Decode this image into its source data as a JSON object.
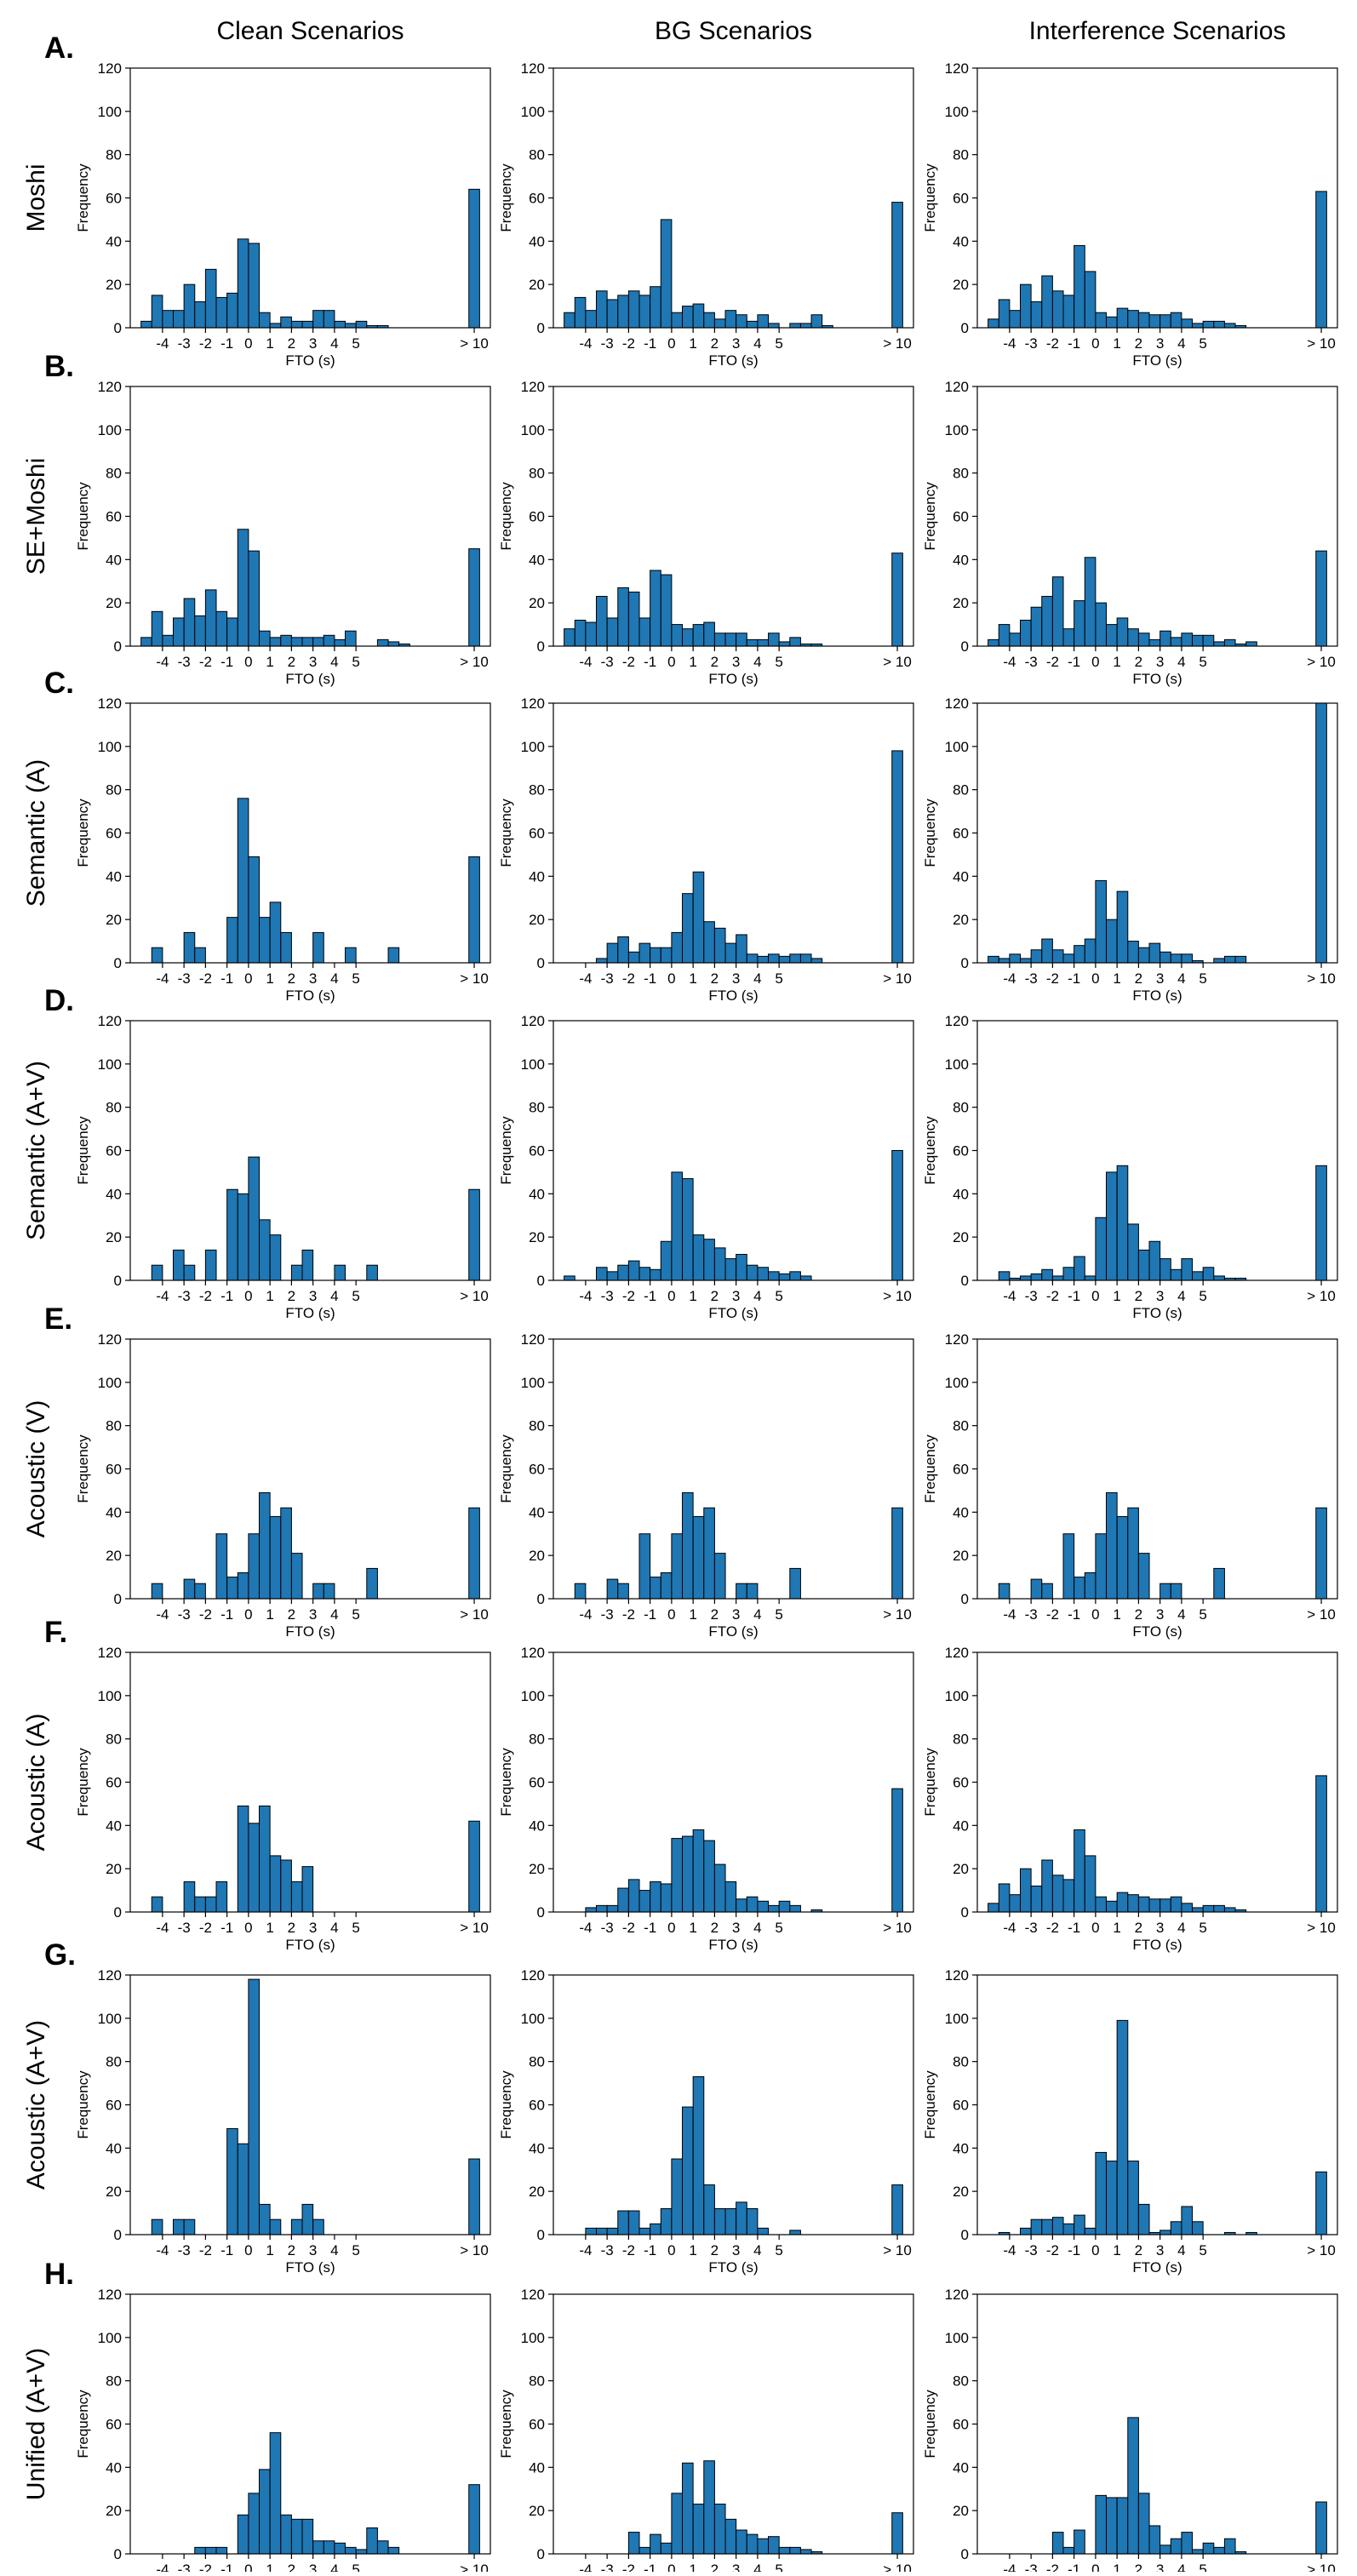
{
  "colors": {
    "bar_fill": "#1f77b4",
    "bar_edge": "#000000",
    "axis": "#000000",
    "background": "#ffffff"
  },
  "column_titles": [
    "Clean Scenarios",
    "BG Scenarios",
    "Interference Scenarios"
  ],
  "row_letters": [
    "A.",
    "B.",
    "C.",
    "D.",
    "E.",
    "F.",
    "G.",
    "H."
  ],
  "row_labels": [
    "Moshi",
    "SE+Moshi",
    "Semantic (A)",
    "Semantic (A+V)",
    "Acoustic (V)",
    "Acoustic (A)",
    "Acoustic  (A+V)",
    "Unified (A+V)"
  ],
  "chart_data": {
    "type": "bar",
    "layout": "grid-8x3",
    "xlabel": "FTO (s)",
    "ylabel": "Frequency",
    "ylim": [
      0,
      120
    ],
    "yticks": [
      0,
      20,
      40,
      60,
      80,
      100,
      120
    ],
    "xlim": [
      -5.5,
      11.25
    ],
    "xtick_values": [
      -4,
      -3,
      -2,
      -1,
      0,
      1,
      2,
      3,
      4,
      5,
      10.5
    ],
    "xtick_labels": [
      "-4",
      "-3",
      "-2",
      "-1",
      "0",
      "1",
      "2",
      "3",
      "4",
      "5",
      "> 10"
    ],
    "bin_width": 0.5,
    "bin_start": -5,
    "overflow_bin_label": "> 10",
    "panels": [
      [
        {
          "values": [
            3,
            15,
            8,
            8,
            20,
            12,
            27,
            14,
            16,
            41,
            39,
            7,
            2,
            5,
            3,
            3,
            8,
            8,
            3,
            2,
            3,
            1,
            1
          ],
          "overflow": 64
        },
        {
          "values": [
            7,
            14,
            8,
            17,
            13,
            15,
            17,
            15,
            19,
            50,
            7,
            10,
            11,
            7,
            4,
            8,
            6,
            3,
            6,
            2,
            0,
            2,
            2,
            6,
            1
          ],
          "overflow": 58
        },
        {
          "values": [
            4,
            13,
            8,
            20,
            12,
            24,
            17,
            15,
            38,
            26,
            7,
            5,
            9,
            8,
            7,
            6,
            6,
            7,
            4,
            2,
            3,
            3,
            2,
            1
          ],
          "overflow": 63
        }
      ],
      [
        {
          "values": [
            4,
            16,
            5,
            13,
            22,
            14,
            26,
            16,
            13,
            54,
            44,
            7,
            4,
            5,
            4,
            4,
            4,
            5,
            3,
            7,
            0,
            0,
            3,
            2,
            1
          ],
          "overflow": 45
        },
        {
          "values": [
            8,
            12,
            11,
            23,
            13,
            27,
            25,
            13,
            35,
            33,
            10,
            8,
            10,
            11,
            6,
            6,
            6,
            3,
            3,
            6,
            2,
            4,
            1,
            1
          ],
          "overflow": 43
        },
        {
          "values": [
            3,
            10,
            6,
            12,
            18,
            23,
            32,
            8,
            21,
            41,
            20,
            10,
            13,
            8,
            6,
            3,
            7,
            4,
            6,
            5,
            5,
            2,
            3,
            1,
            2
          ],
          "overflow": 44
        }
      ],
      [
        {
          "values": [
            0,
            7,
            0,
            0,
            14,
            7,
            0,
            0,
            21,
            76,
            49,
            21,
            28,
            14,
            0,
            0,
            14,
            0,
            0,
            7,
            0,
            0,
            0,
            7
          ],
          "overflow": 49
        },
        {
          "values": [
            0,
            0,
            0,
            2,
            9,
            12,
            5,
            9,
            7,
            7,
            14,
            32,
            42,
            19,
            16,
            9,
            13,
            4,
            3,
            4,
            3,
            4,
            4,
            2
          ],
          "overflow": 98
        },
        {
          "values": [
            3,
            2,
            4,
            2,
            6,
            11,
            6,
            4,
            8,
            11,
            38,
            20,
            33,
            10,
            7,
            9,
            5,
            4,
            4,
            1,
            0,
            2,
            3,
            3
          ],
          "overflow": 120
        }
      ],
      [
        {
          "values": [
            0,
            7,
            0,
            14,
            7,
            0,
            14,
            0,
            42,
            40,
            57,
            28,
            21,
            0,
            7,
            14,
            0,
            0,
            7,
            0,
            0,
            7
          ],
          "overflow": 42
        },
        {
          "values": [
            2,
            0,
            0,
            6,
            4,
            7,
            9,
            6,
            5,
            18,
            50,
            47,
            21,
            19,
            15,
            10,
            12,
            7,
            6,
            4,
            3,
            4,
            2
          ],
          "overflow": 60
        },
        {
          "values": [
            0,
            4,
            1,
            2,
            3,
            5,
            2,
            6,
            11,
            2,
            29,
            50,
            53,
            26,
            14,
            18,
            10,
            5,
            10,
            4,
            6,
            2,
            1,
            1
          ],
          "overflow": 53
        }
      ],
      [
        {
          "values": [
            0,
            7,
            0,
            0,
            9,
            7,
            0,
            30,
            10,
            12,
            30,
            49,
            38,
            42,
            21,
            0,
            7,
            7,
            0,
            0,
            0,
            14
          ],
          "overflow": 42
        },
        {
          "values": [
            0,
            7,
            0,
            0,
            9,
            7,
            0,
            30,
            10,
            12,
            30,
            49,
            38,
            42,
            21,
            0,
            7,
            7,
            0,
            0,
            0,
            14
          ],
          "overflow": 42
        },
        {
          "values": [
            0,
            7,
            0,
            0,
            9,
            7,
            0,
            30,
            10,
            12,
            30,
            49,
            38,
            42,
            21,
            0,
            7,
            7,
            0,
            0,
            0,
            14
          ],
          "overflow": 42
        }
      ],
      [
        {
          "values": [
            0,
            7,
            0,
            0,
            14,
            7,
            7,
            14,
            0,
            49,
            41,
            49,
            26,
            24,
            14,
            21
          ],
          "overflow": 42
        },
        {
          "values": [
            0,
            0,
            2,
            3,
            3,
            11,
            15,
            10,
            14,
            13,
            34,
            35,
            38,
            33,
            22,
            14,
            6,
            7,
            5,
            3,
            5,
            3,
            0,
            1
          ],
          "overflow": 57
        },
        {
          "values": [
            4,
            13,
            8,
            20,
            12,
            24,
            17,
            15,
            38,
            26,
            7,
            5,
            9,
            8,
            7,
            6,
            6,
            7,
            4,
            2,
            3,
            3,
            2,
            1
          ],
          "overflow": 63
        }
      ],
      [
        {
          "values": [
            0,
            7,
            0,
            7,
            7,
            0,
            0,
            0,
            49,
            42,
            118,
            14,
            7,
            0,
            7,
            14,
            7
          ],
          "overflow": 35
        },
        {
          "values": [
            0,
            0,
            3,
            3,
            3,
            11,
            11,
            3,
            5,
            12,
            35,
            59,
            73,
            23,
            12,
            12,
            15,
            12,
            3,
            0,
            0,
            2
          ],
          "overflow": 23
        },
        {
          "values": [
            0,
            1,
            0,
            3,
            7,
            7,
            8,
            5,
            9,
            3,
            38,
            34,
            99,
            34,
            14,
            1,
            2,
            6,
            13,
            6,
            0,
            0,
            1,
            0,
            1
          ],
          "overflow": 29
        }
      ],
      [
        {
          "values": [
            0,
            0,
            0,
            0,
            0,
            3,
            3,
            3,
            0,
            18,
            28,
            39,
            56,
            18,
            16,
            16,
            6,
            6,
            5,
            3,
            2,
            12,
            6,
            3
          ],
          "overflow": 32
        },
        {
          "values": [
            0,
            0,
            0,
            0,
            0,
            0,
            10,
            3,
            9,
            5,
            28,
            42,
            23,
            43,
            23,
            16,
            11,
            9,
            7,
            8,
            3,
            3,
            2,
            1
          ],
          "overflow": 19
        },
        {
          "values": [
            0,
            0,
            0,
            0,
            0,
            0,
            10,
            3,
            11,
            0,
            27,
            26,
            26,
            63,
            28,
            13,
            4,
            7,
            10,
            2,
            5,
            3,
            7,
            1
          ],
          "overflow": 24
        }
      ]
    ]
  }
}
